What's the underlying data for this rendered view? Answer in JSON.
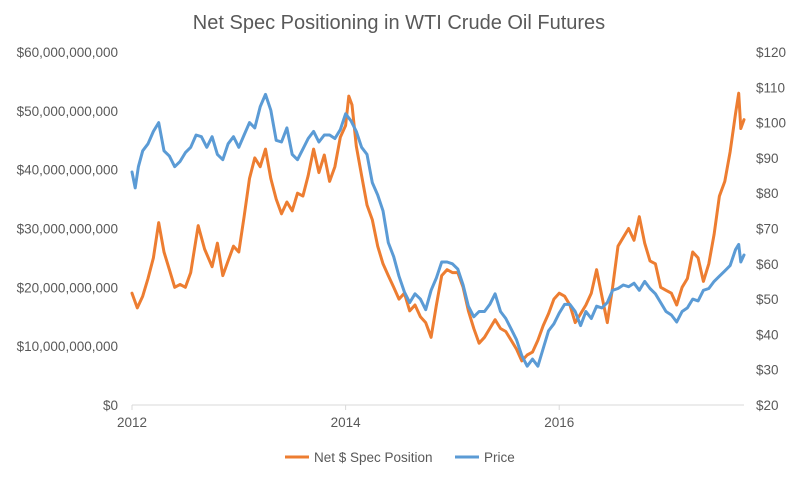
{
  "chart_data": {
    "type": "line",
    "title": "Net Spec Positioning in WTI Crude Oil Futures",
    "legend_position": "bottom",
    "grid": false,
    "x_axis": {
      "range": [
        2012.0,
        2017.73
      ],
      "ticks": [
        2012,
        2014,
        2016
      ],
      "tick_labels": [
        "2012",
        "2014",
        "2016"
      ]
    },
    "y_left": {
      "range": [
        0,
        60000000000
      ],
      "ticks": [
        0,
        10000000000,
        20000000000,
        30000000000,
        40000000000,
        50000000000,
        60000000000
      ],
      "tick_labels": [
        "$0",
        "$10,000,000,000",
        "$20,000,000,000",
        "$30,000,000,000",
        "$40,000,000,000",
        "$50,000,000,000",
        "$60,000,000,000"
      ]
    },
    "y_right": {
      "range": [
        20,
        120
      ],
      "ticks": [
        20,
        30,
        40,
        50,
        60,
        70,
        80,
        90,
        100,
        110,
        120
      ],
      "tick_labels": [
        "$20",
        "$30",
        "$40",
        "$50",
        "$60",
        "$70",
        "$80",
        "$90",
        "$100",
        "$110",
        "$120"
      ]
    },
    "series": [
      {
        "name": "Net $ Spec Position",
        "axis": "left",
        "color": "#ED7D31",
        "points": [
          [
            2012.0,
            19000000000
          ],
          [
            2012.05,
            16500000000
          ],
          [
            2012.1,
            18500000000
          ],
          [
            2012.15,
            21500000000
          ],
          [
            2012.2,
            25000000000
          ],
          [
            2012.25,
            31000000000
          ],
          [
            2012.3,
            26000000000
          ],
          [
            2012.35,
            23000000000
          ],
          [
            2012.4,
            20000000000
          ],
          [
            2012.45,
            20500000000
          ],
          [
            2012.5,
            20000000000
          ],
          [
            2012.55,
            22500000000
          ],
          [
            2012.62,
            30500000000
          ],
          [
            2012.68,
            26500000000
          ],
          [
            2012.75,
            23500000000
          ],
          [
            2012.8,
            27500000000
          ],
          [
            2012.85,
            22000000000
          ],
          [
            2012.9,
            24500000000
          ],
          [
            2012.95,
            27000000000
          ],
          [
            2013.0,
            26000000000
          ],
          [
            2013.05,
            32000000000
          ],
          [
            2013.1,
            38500000000
          ],
          [
            2013.15,
            42000000000
          ],
          [
            2013.2,
            40500000000
          ],
          [
            2013.25,
            43500000000
          ],
          [
            2013.3,
            38500000000
          ],
          [
            2013.35,
            35000000000
          ],
          [
            2013.4,
            32500000000
          ],
          [
            2013.45,
            34500000000
          ],
          [
            2013.5,
            33000000000
          ],
          [
            2013.55,
            36000000000
          ],
          [
            2013.6,
            35500000000
          ],
          [
            2013.65,
            39000000000
          ],
          [
            2013.7,
            43500000000
          ],
          [
            2013.75,
            39500000000
          ],
          [
            2013.8,
            42500000000
          ],
          [
            2013.85,
            38000000000
          ],
          [
            2013.9,
            40500000000
          ],
          [
            2013.95,
            45500000000
          ],
          [
            2014.0,
            47500000000
          ],
          [
            2014.03,
            52500000000
          ],
          [
            2014.06,
            51000000000
          ],
          [
            2014.1,
            44000000000
          ],
          [
            2014.15,
            39000000000
          ],
          [
            2014.2,
            34000000000
          ],
          [
            2014.25,
            31500000000
          ],
          [
            2014.3,
            27000000000
          ],
          [
            2014.35,
            24000000000
          ],
          [
            2014.4,
            22000000000
          ],
          [
            2014.45,
            20000000000
          ],
          [
            2014.5,
            18000000000
          ],
          [
            2014.55,
            19000000000
          ],
          [
            2014.6,
            16000000000
          ],
          [
            2014.65,
            17000000000
          ],
          [
            2014.7,
            15000000000
          ],
          [
            2014.75,
            14000000000
          ],
          [
            2014.8,
            11500000000
          ],
          [
            2014.85,
            17000000000
          ],
          [
            2014.9,
            22000000000
          ],
          [
            2014.95,
            23000000000
          ],
          [
            2015.0,
            22500000000
          ],
          [
            2015.05,
            22500000000
          ],
          [
            2015.1,
            20000000000
          ],
          [
            2015.15,
            16000000000
          ],
          [
            2015.2,
            13000000000
          ],
          [
            2015.25,
            10500000000
          ],
          [
            2015.3,
            11500000000
          ],
          [
            2015.35,
            13000000000
          ],
          [
            2015.4,
            14500000000
          ],
          [
            2015.45,
            13000000000
          ],
          [
            2015.5,
            12500000000
          ],
          [
            2015.55,
            11000000000
          ],
          [
            2015.6,
            9500000000
          ],
          [
            2015.65,
            7500000000
          ],
          [
            2015.7,
            8500000000
          ],
          [
            2015.75,
            9000000000
          ],
          [
            2015.8,
            11000000000
          ],
          [
            2015.85,
            13500000000
          ],
          [
            2015.9,
            15500000000
          ],
          [
            2015.95,
            18000000000
          ],
          [
            2016.0,
            19000000000
          ],
          [
            2016.05,
            18500000000
          ],
          [
            2016.1,
            17000000000
          ],
          [
            2016.15,
            14000000000
          ],
          [
            2016.2,
            15500000000
          ],
          [
            2016.25,
            17000000000
          ],
          [
            2016.3,
            19000000000
          ],
          [
            2016.35,
            23000000000
          ],
          [
            2016.4,
            18500000000
          ],
          [
            2016.45,
            14000000000
          ],
          [
            2016.5,
            20000000000
          ],
          [
            2016.55,
            27000000000
          ],
          [
            2016.6,
            28500000000
          ],
          [
            2016.65,
            30000000000
          ],
          [
            2016.7,
            28000000000
          ],
          [
            2016.75,
            32000000000
          ],
          [
            2016.8,
            27500000000
          ],
          [
            2016.85,
            24500000000
          ],
          [
            2016.9,
            24000000000
          ],
          [
            2016.95,
            20000000000
          ],
          [
            2017.0,
            19500000000
          ],
          [
            2017.05,
            19000000000
          ],
          [
            2017.1,
            17000000000
          ],
          [
            2017.15,
            20000000000
          ],
          [
            2017.2,
            21500000000
          ],
          [
            2017.25,
            26000000000
          ],
          [
            2017.3,
            25000000000
          ],
          [
            2017.35,
            21000000000
          ],
          [
            2017.4,
            24000000000
          ],
          [
            2017.45,
            29000000000
          ],
          [
            2017.5,
            35500000000
          ],
          [
            2017.55,
            38000000000
          ],
          [
            2017.6,
            43000000000
          ],
          [
            2017.65,
            49500000000
          ],
          [
            2017.68,
            53000000000
          ],
          [
            2017.7,
            47000000000
          ],
          [
            2017.73,
            48500000000
          ]
        ]
      },
      {
        "name": "Price",
        "axis": "right",
        "color": "#5B9BD5",
        "points": [
          [
            2012.0,
            86.0
          ],
          [
            2012.03,
            81.5
          ],
          [
            2012.06,
            87.5
          ],
          [
            2012.1,
            92.0
          ],
          [
            2012.15,
            94.0
          ],
          [
            2012.2,
            97.5
          ],
          [
            2012.25,
            100.0
          ],
          [
            2012.3,
            92.0
          ],
          [
            2012.35,
            90.5
          ],
          [
            2012.4,
            87.5
          ],
          [
            2012.45,
            89.0
          ],
          [
            2012.5,
            91.5
          ],
          [
            2012.55,
            93.0
          ],
          [
            2012.6,
            96.5
          ],
          [
            2012.65,
            96.0
          ],
          [
            2012.7,
            93.0
          ],
          [
            2012.75,
            96.0
          ],
          [
            2012.8,
            91.0
          ],
          [
            2012.85,
            89.5
          ],
          [
            2012.9,
            94.0
          ],
          [
            2012.95,
            96.0
          ],
          [
            2013.0,
            93.0
          ],
          [
            2013.05,
            96.5
          ],
          [
            2013.1,
            100.0
          ],
          [
            2013.15,
            98.5
          ],
          [
            2013.2,
            104.5
          ],
          [
            2013.25,
            108.0
          ],
          [
            2013.3,
            103.5
          ],
          [
            2013.35,
            95.0
          ],
          [
            2013.4,
            94.5
          ],
          [
            2013.45,
            98.5
          ],
          [
            2013.5,
            91.0
          ],
          [
            2013.55,
            89.5
          ],
          [
            2013.6,
            92.5
          ],
          [
            2013.65,
            95.5
          ],
          [
            2013.7,
            97.5
          ],
          [
            2013.75,
            94.5
          ],
          [
            2013.8,
            96.5
          ],
          [
            2013.85,
            96.5
          ],
          [
            2013.9,
            95.5
          ],
          [
            2013.95,
            98.0
          ],
          [
            2014.0,
            102.5
          ],
          [
            2014.05,
            100.5
          ],
          [
            2014.1,
            97.5
          ],
          [
            2014.15,
            93.0
          ],
          [
            2014.2,
            91.0
          ],
          [
            2014.25,
            83.0
          ],
          [
            2014.3,
            79.5
          ],
          [
            2014.35,
            75.0
          ],
          [
            2014.4,
            66.0
          ],
          [
            2014.45,
            62.0
          ],
          [
            2014.5,
            56.5
          ],
          [
            2014.55,
            52.0
          ],
          [
            2014.6,
            49.0
          ],
          [
            2014.65,
            51.5
          ],
          [
            2014.7,
            50.0
          ],
          [
            2014.75,
            47.0
          ],
          [
            2014.8,
            52.5
          ],
          [
            2014.85,
            56.0
          ],
          [
            2014.9,
            60.5
          ],
          [
            2014.95,
            60.5
          ],
          [
            2015.0,
            60.0
          ],
          [
            2015.05,
            58.5
          ],
          [
            2015.1,
            54.0
          ],
          [
            2015.15,
            48.0
          ],
          [
            2015.2,
            45.0
          ],
          [
            2015.25,
            46.5
          ],
          [
            2015.3,
            46.5
          ],
          [
            2015.35,
            48.5
          ],
          [
            2015.4,
            51.5
          ],
          [
            2015.45,
            46.5
          ],
          [
            2015.5,
            44.5
          ],
          [
            2015.55,
            41.5
          ],
          [
            2015.6,
            38.5
          ],
          [
            2015.65,
            34.0
          ],
          [
            2015.7,
            31.0
          ],
          [
            2015.75,
            33.0
          ],
          [
            2015.8,
            31.0
          ],
          [
            2015.85,
            36.0
          ],
          [
            2015.9,
            41.0
          ],
          [
            2015.95,
            43.0
          ],
          [
            2016.0,
            46.0
          ],
          [
            2016.05,
            48.5
          ],
          [
            2016.1,
            48.5
          ],
          [
            2016.15,
            46.5
          ],
          [
            2016.2,
            42.5
          ],
          [
            2016.25,
            46.5
          ],
          [
            2016.3,
            44.5
          ],
          [
            2016.35,
            48.0
          ],
          [
            2016.4,
            47.5
          ],
          [
            2016.45,
            49.0
          ],
          [
            2016.5,
            52.5
          ],
          [
            2016.55,
            53.0
          ],
          [
            2016.6,
            54.0
          ],
          [
            2016.65,
            53.5
          ],
          [
            2016.7,
            54.5
          ],
          [
            2016.75,
            52.5
          ],
          [
            2016.8,
            55.0
          ],
          [
            2016.85,
            53.0
          ],
          [
            2016.9,
            51.5
          ],
          [
            2016.95,
            49.0
          ],
          [
            2017.0,
            46.5
          ],
          [
            2017.05,
            45.5
          ],
          [
            2017.1,
            43.5
          ],
          [
            2017.15,
            46.5
          ],
          [
            2017.2,
            47.5
          ],
          [
            2017.25,
            50.0
          ],
          [
            2017.3,
            49.5
          ],
          [
            2017.35,
            52.5
          ],
          [
            2017.4,
            53.0
          ],
          [
            2017.45,
            55.0
          ],
          [
            2017.5,
            56.5
          ],
          [
            2017.55,
            58.0
          ],
          [
            2017.6,
            59.5
          ],
          [
            2017.65,
            64.0
          ],
          [
            2017.68,
            65.5
          ],
          [
            2017.7,
            60.5
          ],
          [
            2017.73,
            62.5
          ]
        ]
      }
    ]
  }
}
